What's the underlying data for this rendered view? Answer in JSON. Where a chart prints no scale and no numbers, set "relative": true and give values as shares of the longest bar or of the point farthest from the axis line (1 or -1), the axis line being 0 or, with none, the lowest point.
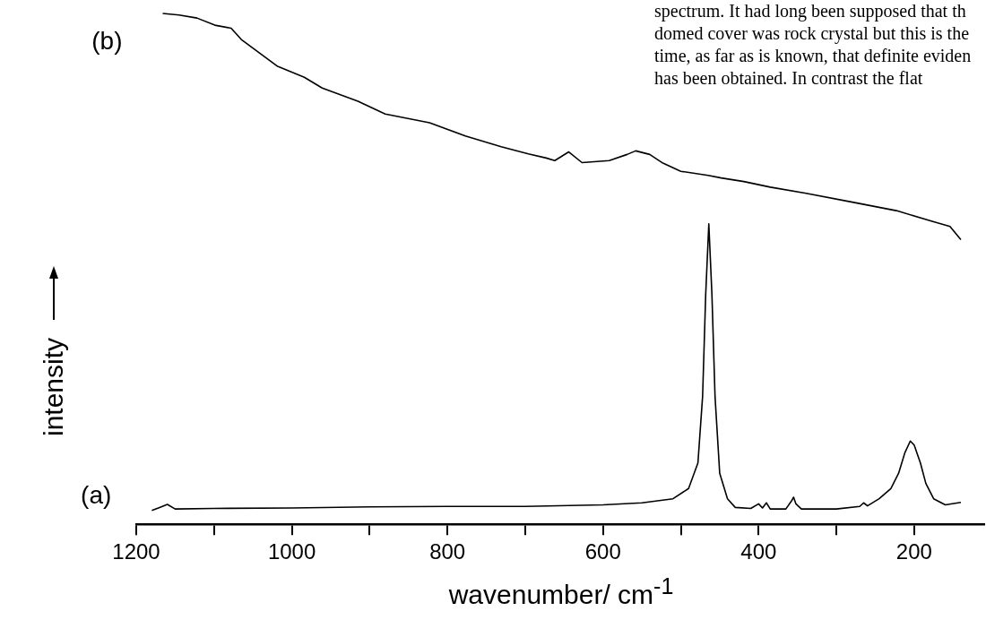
{
  "chart_data": {
    "type": "line",
    "relative": true,
    "xlabel": "wavenumber/ cm$^{-1}$",
    "ylabel": "intensity",
    "xlim": [
      1200,
      110
    ],
    "xticks": [
      1200,
      {
        "value": 1100,
        "label": null
      },
      1000,
      {
        "value": 900,
        "label": null
      },
      800,
      {
        "value": 700,
        "label": null
      },
      600,
      {
        "value": 500,
        "label": null
      },
      400,
      {
        "value": 300,
        "label": null
      },
      200
    ],
    "legend": false,
    "marker": "none",
    "line_style": "solid",
    "grid": false,
    "annotations": [
      "spectrum. It had long been supposed that th",
      "domed cover was rock crystal but this is the",
      "time, as far as is known, that definite eviden",
      "has been obtained. In contrast the flat"
    ],
    "series": [
      {
        "name": "(b)",
        "color": "#000000",
        "x": [
          1166,
          1145,
          1122,
          1099,
          1078,
          1065,
          1042,
          1019,
          984,
          961,
          915,
          880,
          823,
          777,
          731,
          696,
          673,
          662,
          644,
          627,
          592,
          569,
          558,
          540,
          523,
          500,
          465,
          448,
          419,
          385,
          339,
          281,
          223,
          177,
          154,
          140
        ],
        "values": [
          1.0,
          0.997,
          0.991,
          0.977,
          0.971,
          0.949,
          0.923,
          0.897,
          0.875,
          0.854,
          0.828,
          0.803,
          0.786,
          0.76,
          0.739,
          0.725,
          0.717,
          0.712,
          0.729,
          0.708,
          0.712,
          0.724,
          0.731,
          0.724,
          0.707,
          0.691,
          0.683,
          0.678,
          0.671,
          0.66,
          0.648,
          0.631,
          0.614,
          0.593,
          0.583,
          0.557
        ]
      },
      {
        "name": "(a)",
        "color": "#000000",
        "x": [
          1180,
          1170,
          1160,
          1150,
          1100,
          1000,
          900,
          800,
          700,
          600,
          550,
          510,
          490,
          478,
          472,
          468,
          464,
          460,
          456,
          450,
          440,
          430,
          410,
          400,
          395,
          390,
          385,
          365,
          358,
          355,
          352,
          345,
          300,
          270,
          265,
          260,
          245,
          230,
          220,
          212,
          205,
          200,
          192,
          185,
          175,
          160,
          140
        ],
        "values": [
          0.027,
          0.033,
          0.039,
          0.03,
          0.031,
          0.032,
          0.034,
          0.035,
          0.035,
          0.038,
          0.042,
          0.05,
          0.07,
          0.12,
          0.25,
          0.45,
          0.588,
          0.45,
          0.25,
          0.1,
          0.05,
          0.033,
          0.031,
          0.04,
          0.032,
          0.042,
          0.03,
          0.03,
          0.045,
          0.053,
          0.04,
          0.03,
          0.03,
          0.035,
          0.042,
          0.036,
          0.05,
          0.07,
          0.1,
          0.14,
          0.163,
          0.155,
          0.12,
          0.08,
          0.05,
          0.038,
          0.043
        ]
      }
    ]
  }
}
